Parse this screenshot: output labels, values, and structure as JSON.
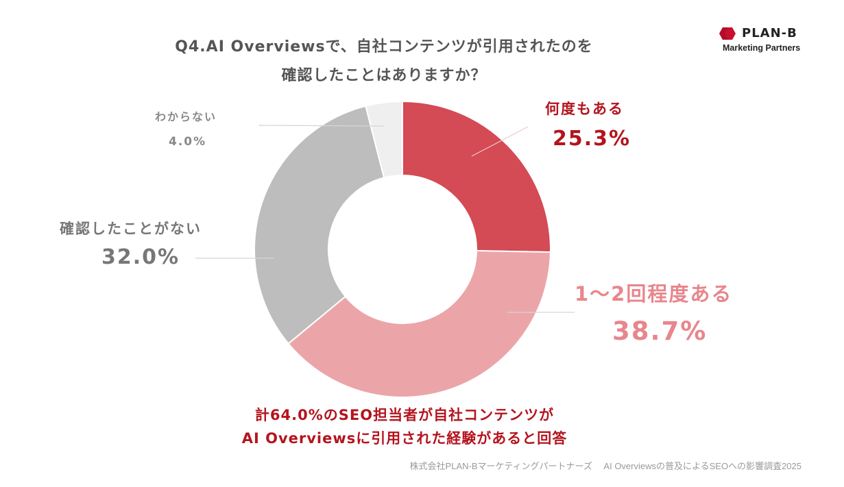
{
  "title": {
    "line1": "Q4.AI Overviewsで、自社コンテンツが引用されたのを",
    "line2": "確認したことはありますか？"
  },
  "logo": {
    "name": "PLAN-B",
    "tagline": "Marketing Partners",
    "icon": "plan-b-hexagon-icon",
    "color": "#c8102e"
  },
  "chart_data": {
    "type": "pie",
    "donut": true,
    "categories": [
      "何度もある",
      "1～2回程度ある",
      "確認したことがない",
      "わからない"
    ],
    "values": [
      25.3,
      38.7,
      32.0,
      4.0
    ],
    "value_labels": [
      "25.3%",
      "38.7%",
      "32.0%",
      "4.0%"
    ],
    "colors": [
      "#d44a55",
      "#eba5a9",
      "#bdbdbd",
      "#efefef"
    ],
    "label_colors": [
      "#b4141e",
      "#e8868c",
      "#777777",
      "#888888"
    ]
  },
  "summary": {
    "line1": "計64.0%のSEO担当者が自社コンテンツが",
    "line2": "AI Overviewsに引用された経験があると回答"
  },
  "footer": "株式会社PLAN-Bマーケティングパートナーズ　 AI Overviewsの普及によるSEOへの影響調査2025"
}
